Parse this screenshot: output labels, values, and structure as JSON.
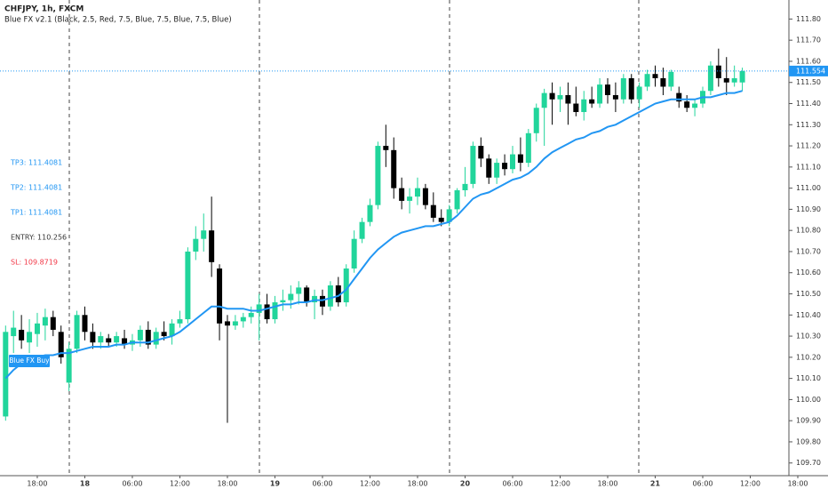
{
  "chart_data": {
    "type": "candlestick",
    "title": "CHFJPY, 1h, FXCM",
    "subtitle": "Blue FX v2.1 (Black, 2.5, Red, 7.5, Blue, 7.5, Blue, 7.5, Blue)",
    "categories": [
      null,
      null,
      null,
      null,
      "18:00",
      null,
      null,
      null,
      null,
      null,
      "18",
      null,
      null,
      null,
      null,
      null,
      "06:00",
      null,
      null,
      null,
      null,
      null,
      "12:00",
      null,
      null,
      null,
      null,
      null,
      "18:00",
      null,
      null,
      null,
      null,
      null,
      "19",
      null,
      null,
      null,
      null,
      null,
      "06:00",
      null,
      null,
      null,
      null,
      null,
      "12:00",
      null,
      null,
      null,
      null,
      null,
      "18:00",
      null,
      null,
      null,
      null,
      null,
      "20",
      null,
      null,
      null,
      null,
      null,
      "06:00",
      null,
      null,
      null,
      null,
      null,
      "12:00",
      null,
      null,
      null,
      null,
      null,
      "18:00",
      null,
      null,
      null,
      null,
      null,
      "21",
      null,
      null,
      null,
      null,
      null,
      "06:00",
      null,
      null,
      null,
      null,
      null,
      "12:00",
      null,
      null,
      null,
      null,
      null,
      "18:00"
    ],
    "open": [
      109.92,
      110.3,
      110.33,
      110.27,
      110.31,
      110.35,
      110.39,
      110.32,
      110.08,
      110.24,
      110.4,
      110.32,
      110.27,
      110.29,
      110.27,
      110.29,
      110.26,
      110.28,
      110.33,
      110.26,
      110.32,
      110.3,
      110.36,
      110.38,
      110.7,
      110.76,
      110.8,
      110.62,
      110.37,
      110.35,
      110.37,
      110.39,
      110.41,
      110.45,
      110.38,
      110.46,
      110.47,
      110.5,
      110.53,
      110.46,
      110.49,
      110.44,
      110.54,
      110.46,
      110.62,
      110.76,
      110.84,
      110.92,
      111.2,
      111.18,
      111.0,
      110.94,
      110.96,
      111.0,
      110.92,
      110.86,
      110.84,
      110.9,
      110.99,
      111.02,
      111.2,
      111.14,
      111.05,
      111.12,
      111.09,
      111.16,
      111.12,
      111.26,
      111.38,
      111.45,
      111.42,
      111.44,
      111.4,
      111.36,
      111.42,
      111.4,
      111.49,
      111.44,
      111.42,
      111.52,
      111.42,
      111.48,
      111.54,
      111.52,
      111.48,
      111.45,
      111.41,
      111.38,
      111.4,
      111.46,
      111.58,
      111.52,
      111.5,
      111.5,
      null,
      null,
      null,
      null,
      null,
      null,
      null
    ],
    "high": [
      110.35,
      110.42,
      110.4,
      110.38,
      110.41,
      110.43,
      110.42,
      110.35,
      110.27,
      110.42,
      110.44,
      110.36,
      110.32,
      110.31,
      110.32,
      110.33,
      110.31,
      110.35,
      110.37,
      110.34,
      110.37,
      110.38,
      110.42,
      110.72,
      110.82,
      110.88,
      110.96,
      110.64,
      110.4,
      110.4,
      110.41,
      110.44,
      110.5,
      110.5,
      110.49,
      110.52,
      110.54,
      110.56,
      110.54,
      110.52,
      110.52,
      110.56,
      110.58,
      110.64,
      110.8,
      110.86,
      110.95,
      111.22,
      111.3,
      111.24,
      111.05,
      111.0,
      111.05,
      111.02,
      110.98,
      110.9,
      110.92,
      111.0,
      111.1,
      111.22,
      111.24,
      111.16,
      111.14,
      111.16,
      111.2,
      111.24,
      111.28,
      111.4,
      111.47,
      111.5,
      111.48,
      111.5,
      111.48,
      111.46,
      111.48,
      111.52,
      111.52,
      111.5,
      111.54,
      111.54,
      111.5,
      111.56,
      111.58,
      111.57,
      111.56,
      111.48,
      111.44,
      111.42,
      111.48,
      111.6,
      111.66,
      111.62,
      111.58,
      111.57,
      null,
      null,
      null,
      null,
      null,
      null,
      null
    ],
    "low": [
      109.9,
      110.22,
      110.24,
      110.22,
      110.25,
      110.28,
      110.3,
      110.17,
      110.04,
      110.22,
      110.28,
      110.24,
      110.24,
      110.25,
      110.25,
      110.24,
      110.23,
      110.25,
      110.24,
      110.24,
      110.28,
      110.26,
      110.34,
      110.36,
      110.66,
      110.7,
      110.58,
      110.28,
      109.89,
      110.33,
      110.34,
      110.36,
      110.28,
      110.36,
      110.36,
      110.42,
      110.43,
      110.45,
      110.44,
      110.38,
      110.4,
      110.42,
      110.44,
      110.44,
      110.6,
      110.74,
      110.82,
      110.9,
      111.1,
      110.95,
      110.9,
      110.88,
      110.92,
      110.9,
      110.84,
      110.82,
      110.82,
      110.88,
      110.96,
      111.0,
      111.1,
      111.02,
      111.02,
      111.06,
      111.07,
      111.08,
      111.1,
      111.22,
      111.2,
      111.3,
      111.36,
      111.3,
      111.34,
      111.32,
      111.38,
      111.38,
      111.4,
      111.36,
      111.4,
      111.4,
      111.38,
      111.46,
      111.48,
      111.44,
      111.46,
      111.38,
      111.36,
      111.34,
      111.38,
      111.44,
      111.48,
      111.44,
      111.48,
      111.46,
      null,
      null,
      null,
      null,
      null,
      null,
      null
    ],
    "close": [
      110.32,
      110.34,
      110.28,
      110.32,
      110.36,
      110.39,
      110.33,
      110.2,
      110.24,
      110.4,
      110.32,
      110.27,
      110.3,
      110.27,
      110.3,
      110.26,
      110.28,
      110.33,
      110.26,
      110.32,
      110.3,
      110.36,
      110.38,
      110.7,
      110.76,
      110.8,
      110.65,
      110.36,
      110.35,
      110.37,
      110.39,
      110.41,
      110.45,
      110.38,
      110.46,
      110.47,
      110.5,
      110.53,
      110.46,
      110.49,
      110.44,
      110.54,
      110.46,
      110.62,
      110.76,
      110.84,
      110.92,
      111.2,
      111.18,
      111.0,
      110.94,
      110.96,
      111.0,
      110.92,
      110.86,
      110.84,
      110.9,
      110.99,
      111.02,
      111.2,
      111.14,
      111.05,
      111.12,
      111.09,
      111.16,
      111.12,
      111.26,
      111.38,
      111.45,
      111.42,
      111.44,
      111.4,
      111.36,
      111.42,
      111.4,
      111.49,
      111.44,
      111.42,
      111.52,
      111.42,
      111.48,
      111.54,
      111.52,
      111.48,
      111.55,
      111.41,
      111.38,
      111.4,
      111.46,
      111.58,
      111.52,
      111.5,
      111.52,
      111.554,
      null,
      null,
      null,
      null,
      null,
      null,
      null
    ],
    "up_color": "#21d59b",
    "down_color": "#000000",
    "overlay": {
      "type": "line",
      "color": "#2196f3",
      "values": [
        110.1,
        110.14,
        110.17,
        110.19,
        110.2,
        110.21,
        110.21,
        110.22,
        110.22,
        110.23,
        110.24,
        110.25,
        110.25,
        110.25,
        110.26,
        110.26,
        110.27,
        110.27,
        110.27,
        110.28,
        110.29,
        110.3,
        110.32,
        110.35,
        110.38,
        110.41,
        110.44,
        110.44,
        110.43,
        110.43,
        110.43,
        110.42,
        110.42,
        110.43,
        110.44,
        110.45,
        110.45,
        110.46,
        110.46,
        110.47,
        110.47,
        110.48,
        110.49,
        110.52,
        110.57,
        110.62,
        110.67,
        110.71,
        110.74,
        110.77,
        110.79,
        110.8,
        110.81,
        110.82,
        110.82,
        110.83,
        110.84,
        110.87,
        110.91,
        110.95,
        110.97,
        110.98,
        111.0,
        111.02,
        111.04,
        111.05,
        111.07,
        111.1,
        111.14,
        111.17,
        111.19,
        111.21,
        111.23,
        111.24,
        111.26,
        111.27,
        111.29,
        111.3,
        111.32,
        111.34,
        111.36,
        111.38,
        111.4,
        111.41,
        111.42,
        111.42,
        111.42,
        111.42,
        111.43,
        111.43,
        111.44,
        111.45,
        111.45,
        111.46,
        null,
        null,
        null,
        null,
        null,
        null,
        null
      ]
    },
    "last_price": 111.554,
    "price_line_color": "#2196f3",
    "annotations": [
      {
        "text": "TP3: 111.4081",
        "color": "#2196f3"
      },
      {
        "text": "TP2: 111.4081",
        "color": "#2196f3"
      },
      {
        "text": "TP1: 111.4081",
        "color": "#2196f3"
      },
      {
        "text": "ENTRY: 110.256",
        "color": "#333333"
      },
      {
        "text": "SL: 109.8719",
        "color": "#f23645"
      }
    ],
    "signal_label": "Blue FX Buy",
    "ylim": [
      109.64,
      111.89
    ],
    "yticks": [
      {
        "value": 109.7,
        "label": "109.70"
      },
      {
        "value": 109.8,
        "label": "109.80"
      },
      {
        "value": 109.9,
        "label": "109.90"
      },
      {
        "value": 110.0,
        "label": "110.00"
      },
      {
        "value": 110.1,
        "label": "110.10"
      },
      {
        "value": 110.2,
        "label": "110.20"
      },
      {
        "value": 110.3,
        "label": "110.30"
      },
      {
        "value": 110.4,
        "label": "110.40"
      },
      {
        "value": 110.5,
        "label": "110.50"
      },
      {
        "value": 110.6,
        "label": "110.60"
      },
      {
        "value": 110.7,
        "label": "110.70"
      },
      {
        "value": 110.8,
        "label": "110.80"
      },
      {
        "value": 110.9,
        "label": "110.90"
      },
      {
        "value": 111.0,
        "label": "111.00"
      },
      {
        "value": 111.1,
        "label": "111.10"
      },
      {
        "value": 111.2,
        "label": "111.20"
      },
      {
        "value": 111.3,
        "label": "111.30"
      },
      {
        "value": 111.4,
        "label": "111.40"
      },
      {
        "value": 111.5,
        "label": "111.50"
      },
      {
        "value": 111.6,
        "label": "111.60"
      },
      {
        "value": 111.7,
        "label": "111.70"
      },
      {
        "value": 111.8,
        "label": "111.80"
      }
    ]
  }
}
